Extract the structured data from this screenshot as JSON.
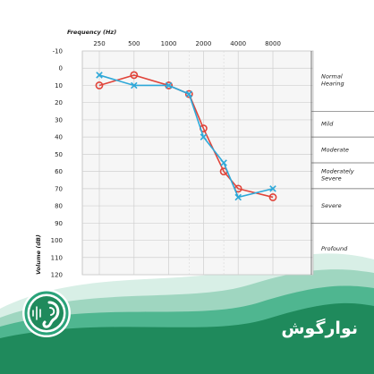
{
  "chart_data": {
    "type": "line",
    "xlabel": "Frequency (Hz)",
    "ylabel": "Volume (dB)",
    "x_ticks": [
      "250",
      "500",
      "1000",
      "2000",
      "4000",
      "8000"
    ],
    "y_ticks": [
      "-10",
      "0",
      "10",
      "20",
      "30",
      "40",
      "50",
      "60",
      "70",
      "80",
      "90",
      "100",
      "110",
      "120"
    ],
    "ylim": [
      -10,
      120
    ],
    "y_inverted": true,
    "grid": true,
    "x_scale": "log2",
    "series": [
      {
        "marker": "circle",
        "color": "#e0443a",
        "x": [
          250,
          500,
          1000,
          1500,
          2000,
          3000,
          4000,
          8000
        ],
        "y": [
          10,
          4,
          10,
          15,
          35,
          60,
          70,
          75
        ]
      },
      {
        "marker": "x",
        "color": "#2ea8d8",
        "x": [
          250,
          500,
          1000,
          1500,
          2000,
          3000,
          4000,
          8000
        ],
        "y": [
          4,
          10,
          10,
          15,
          40,
          55,
          75,
          70
        ]
      }
    ],
    "hearing_bands": [
      {
        "label": "Normal",
        "label2": "Hearing",
        "from": -10,
        "to": 25
      },
      {
        "label": "Mild",
        "label2": "",
        "from": 25,
        "to": 40
      },
      {
        "label": "Moderate",
        "label2": "",
        "from": 40,
        "to": 55
      },
      {
        "label": "Moderately",
        "label2": "Severe",
        "from": 55,
        "to": 70
      },
      {
        "label": "Severe",
        "label2": "",
        "from": 70,
        "to": 90
      },
      {
        "label": "Profound",
        "label2": "",
        "from": 90,
        "to": 120
      }
    ]
  },
  "branding": {
    "name": "نوارگوش",
    "logo_icon": "ear-soundwave-icon",
    "colors": {
      "green": "#1f8a5c",
      "teal": "#2aa37a",
      "light": "#bfe6d6"
    }
  }
}
